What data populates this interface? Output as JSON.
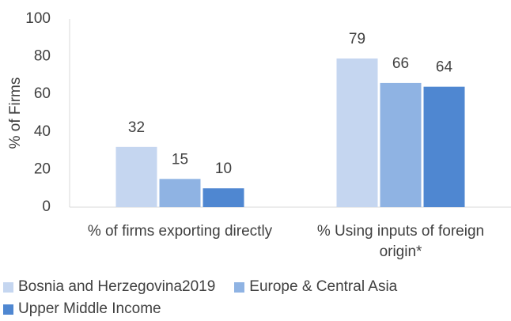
{
  "chart_data": {
    "type": "bar",
    "y_label": "% of Firms",
    "categories": [
      "% of firms exporting directly",
      "% Using inputs of foreign origin*"
    ],
    "series": [
      {
        "name": "Bosnia and Herzegovina2019",
        "color": "#c5d6f0",
        "values": [
          32,
          79
        ]
      },
      {
        "name": "Europe & Central Asia",
        "color": "#8fb3e3",
        "values": [
          15,
          66
        ]
      },
      {
        "name": "Upper Middle Income",
        "color": "#4f87d1",
        "values": [
          10,
          64
        ]
      }
    ],
    "ylim": [
      0,
      100
    ],
    "yticks": [
      0,
      20,
      40,
      60,
      80,
      100
    ],
    "grid": false,
    "legend": "bottom"
  }
}
